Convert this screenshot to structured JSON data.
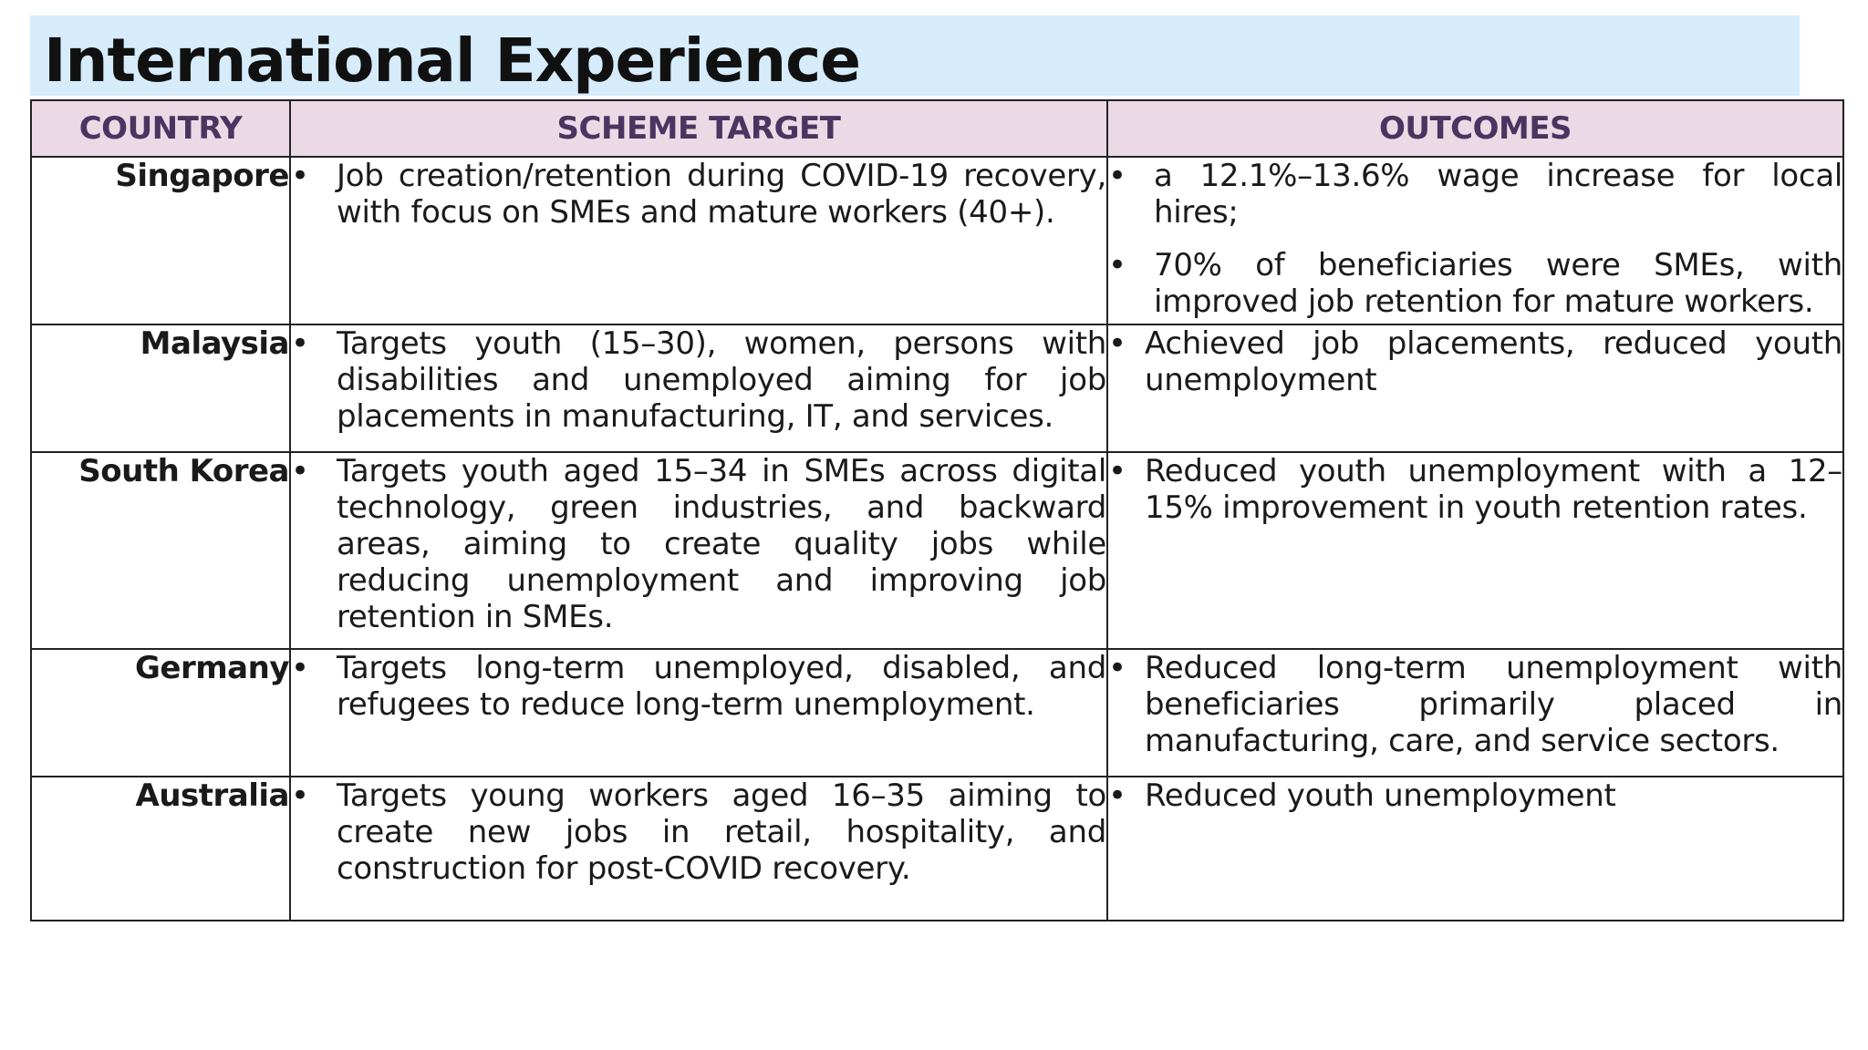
{
  "page": {
    "title": "International Experience"
  },
  "table": {
    "headers": {
      "country": "COUNTRY",
      "scheme_target": "SCHEME TARGET",
      "outcomes": "OUTCOMES"
    },
    "rows": [
      {
        "country": "Singapore",
        "targets": [
          "Job creation/retention during COVID-19 recovery, with focus on SMEs and mature workers (40+)."
        ],
        "outcomes": [
          "a 12.1%–13.6% wage increase for local hires;",
          "70% of beneficiaries were SMEs, with improved job retention for mature workers."
        ]
      },
      {
        "country": "Malaysia",
        "targets": [
          "Targets youth (15–30), women, persons with disabilities and unemployed aiming for job placements in manufacturing, IT, and services."
        ],
        "outcomes": [
          "Achieved job placements, reduced youth unemployment"
        ]
      },
      {
        "country": "South Korea",
        "targets": [
          "Targets youth aged 15–34 in SMEs across digital technology, green industries, and backward areas, aiming to create quality jobs while reducing unemployment and improving job retention in SMEs."
        ],
        "outcomes": [
          "Reduced youth unemployment with a 12–15% improvement in youth retention rates."
        ]
      },
      {
        "country": "Germany",
        "targets": [
          "Targets long-term unemployed, disabled, and refugees to reduce long-term unemployment."
        ],
        "outcomes": [
          "Reduced long-term unemployment with beneficiaries primarily placed in manufacturing, care, and service sectors."
        ]
      },
      {
        "country": "Australia",
        "targets": [
          "Targets young workers aged 16–35 aiming to create new jobs in retail, hospitality, and construction for post-COVID recovery."
        ],
        "outcomes": [
          "Reduced youth unemployment"
        ]
      }
    ]
  },
  "colors": {
    "title_band": "#d6ecfb",
    "header_row": "#ecd9e6",
    "header_text": "#4a3560",
    "border": "#222222"
  }
}
